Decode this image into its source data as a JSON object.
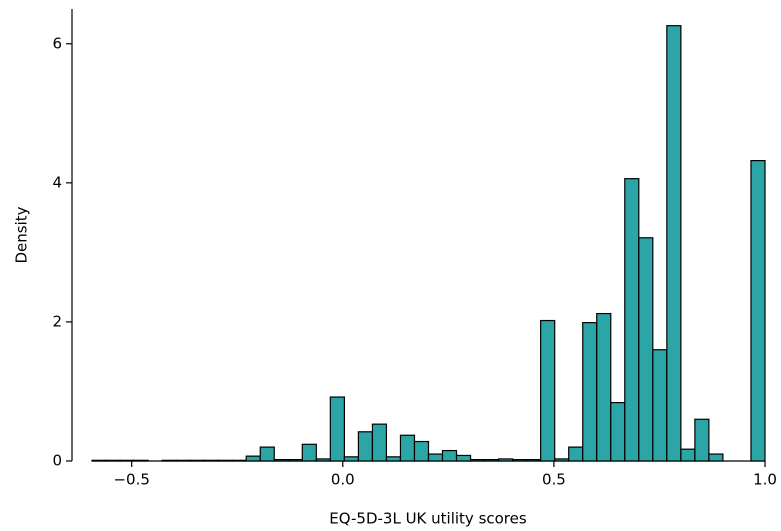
{
  "chart_data": {
    "type": "histogram",
    "x_label": "EQ-5D-3L UK utility scores",
    "y_label": "Density",
    "color": "#2ba5a5",
    "bins": [
      -0.594,
      -0.5608,
      -0.5276,
      -0.4944,
      -0.4612,
      -0.428,
      -0.3948,
      -0.3615,
      -0.3283,
      -0.2951,
      -0.2619,
      -0.2287,
      -0.1955,
      -0.1623,
      -0.1291,
      -0.0959,
      -0.0627,
      -0.0295,
      0.0038,
      0.037,
      0.0702,
      0.1034,
      0.1366,
      0.1698,
      0.203,
      0.2362,
      0.2694,
      0.3026,
      0.3358,
      0.369,
      0.4022,
      0.4354,
      0.4686,
      0.5019,
      0.5351,
      0.5683,
      0.6015,
      0.6347,
      0.6679,
      0.7011,
      0.7343,
      0.7675,
      0.8007,
      0.8339,
      0.8671,
      0.9003,
      0.9335,
      0.9668,
      1.0
    ],
    "values": [
      0.01,
      0.01,
      0.01,
      0.01,
      0,
      0.01,
      0.01,
      0.01,
      0.01,
      0.01,
      0.01,
      0.07,
      0.2,
      0.02,
      0.02,
      0.24,
      0.03,
      0.92,
      0.06,
      0.42,
      0.53,
      0.06,
      0.37,
      0.28,
      0.1,
      0.15,
      0.08,
      0.02,
      0.02,
      0.03,
      0.02,
      0.02,
      2.02,
      0.03,
      0.2,
      1.99,
      2.12,
      0.84,
      4.06,
      3.21,
      1.6,
      6.26,
      0.17,
      0.6,
      0.1,
      0,
      0,
      4.32
    ],
    "xlim": [
      -0.594,
      1.0
    ],
    "ylim": [
      0,
      6.5
    ],
    "xticks": [
      {
        "value": -0.5,
        "label": "−0.5"
      },
      {
        "value": 0,
        "label": "0.0"
      },
      0.5,
      {
        "value": 1,
        "label": "1.0"
      }
    ],
    "yticks": [
      0,
      2,
      4,
      6
    ]
  }
}
